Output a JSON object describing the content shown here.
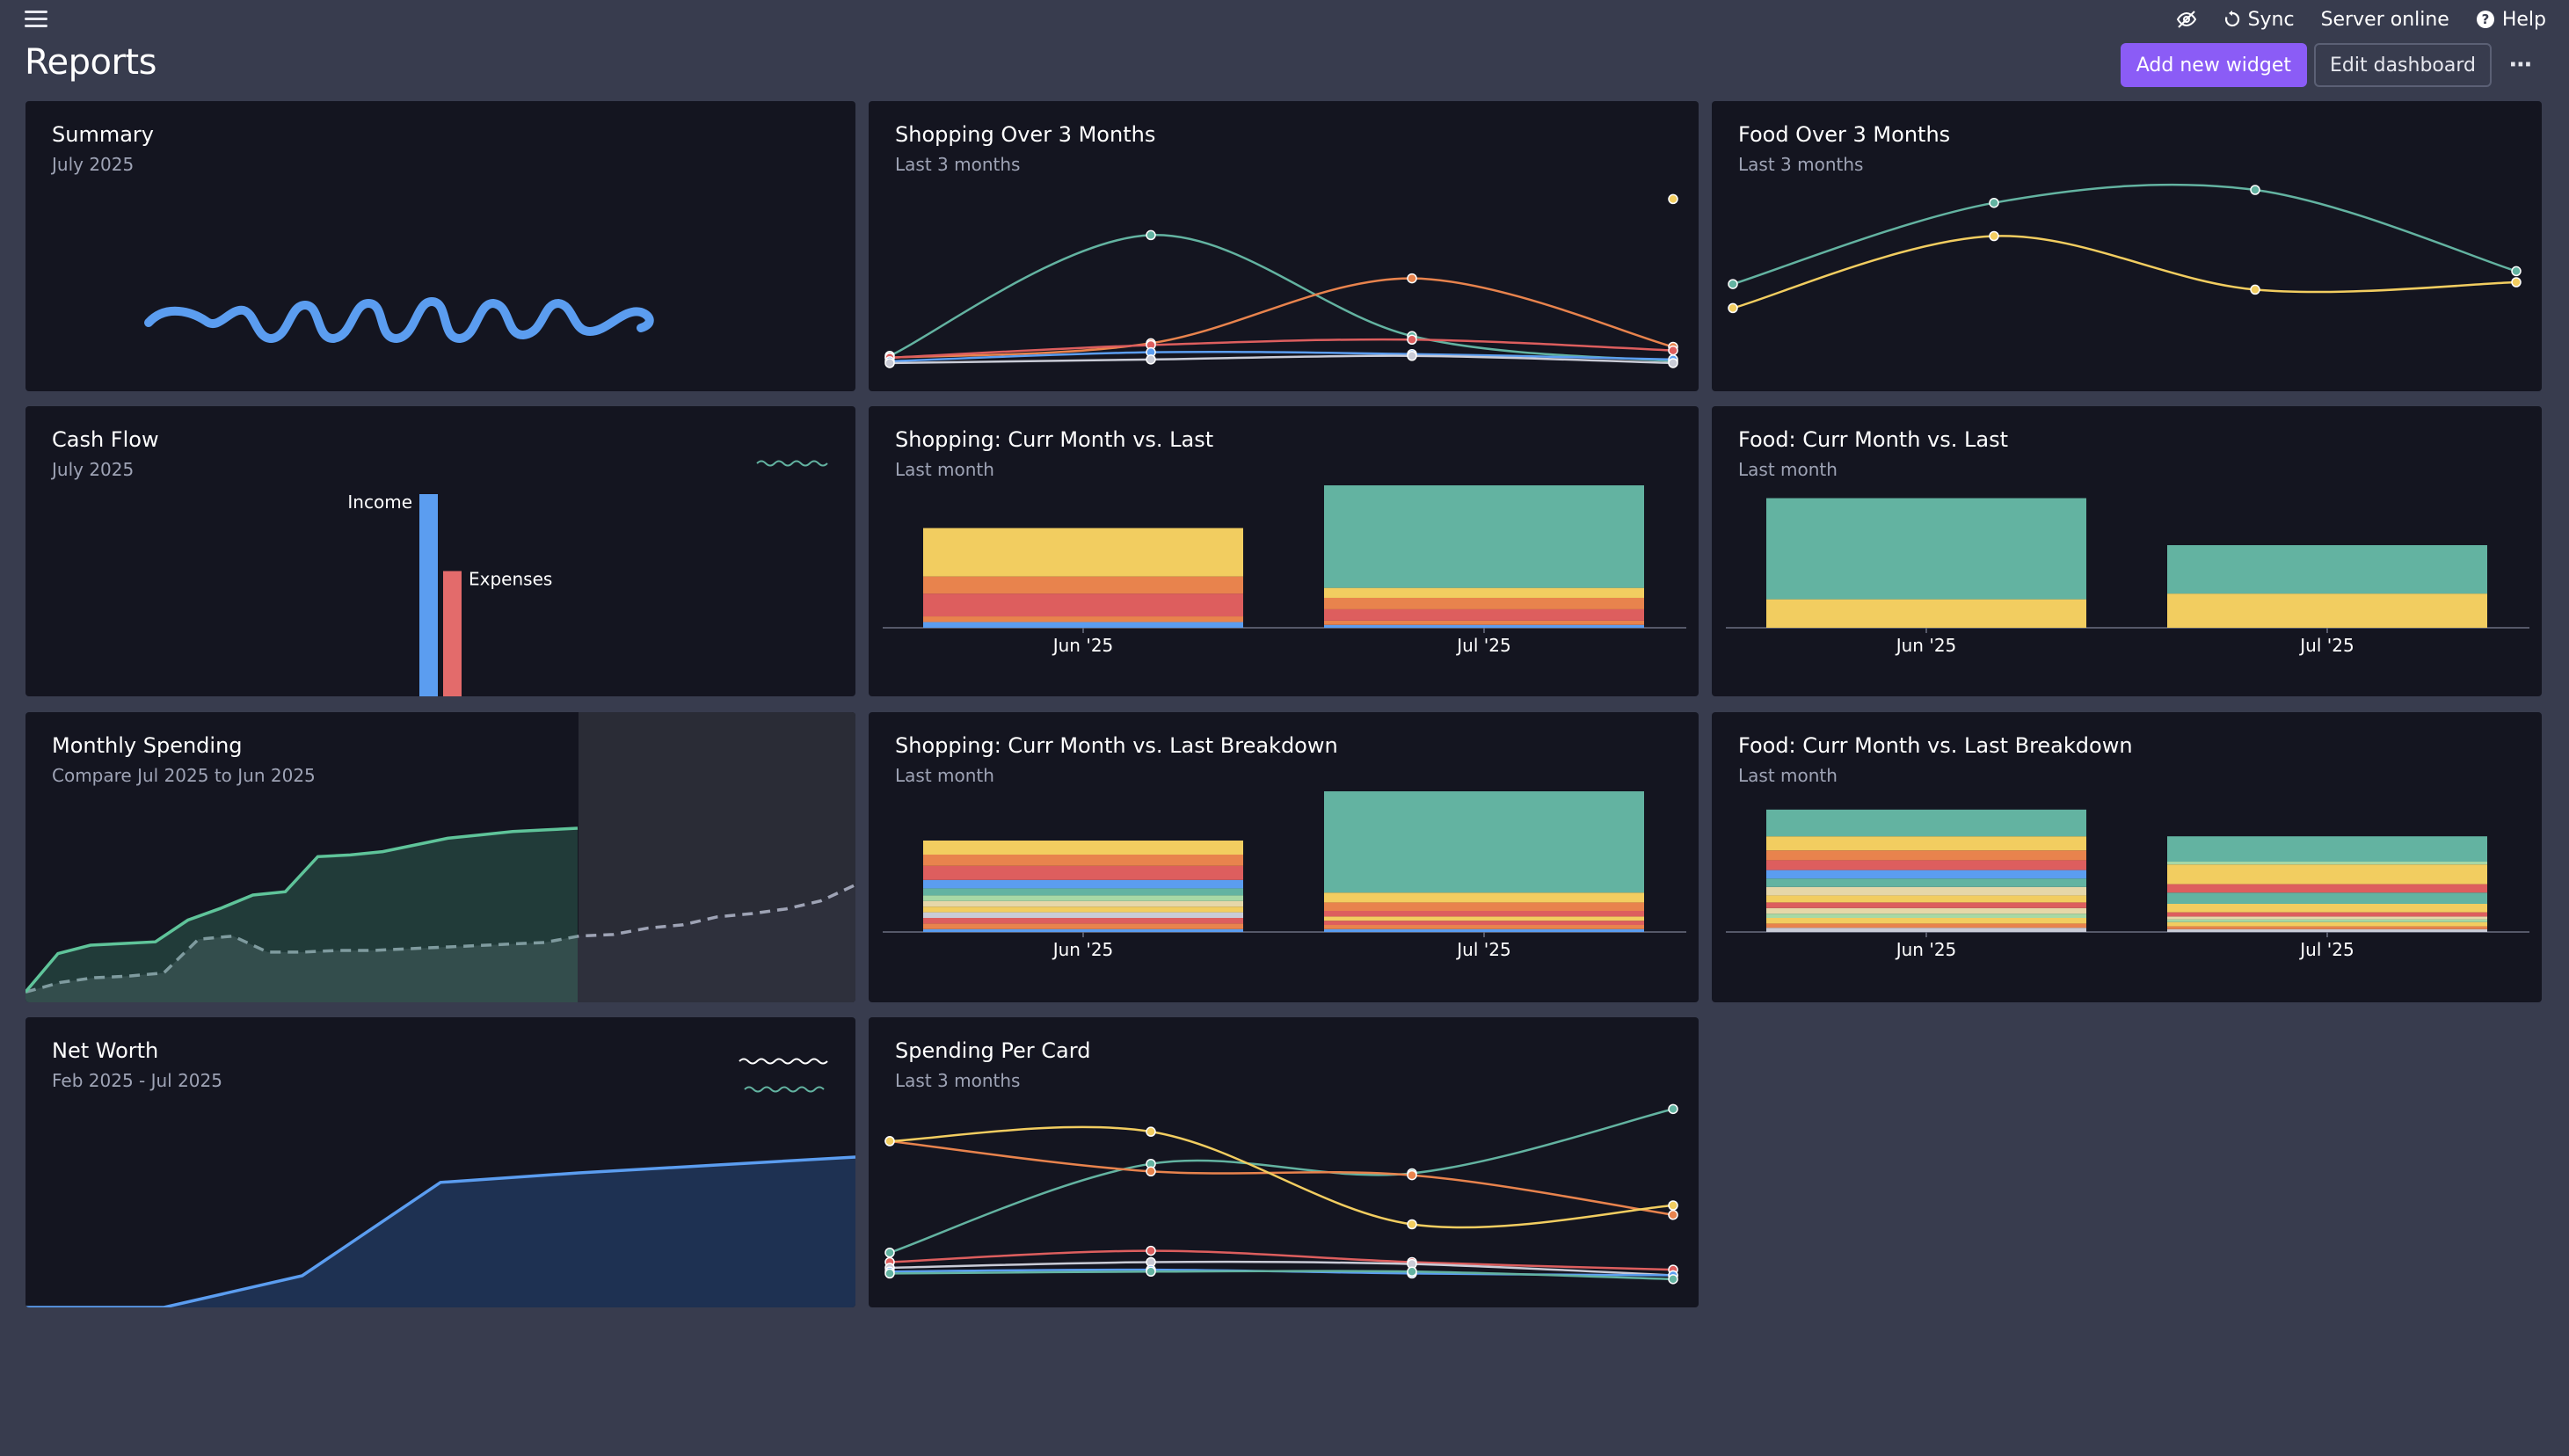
{
  "topbar": {
    "sync_label": "Sync",
    "server_label": "Server online",
    "help_label": "Help"
  },
  "page": {
    "title": "Reports",
    "add_widget_label": "Add new widget",
    "edit_dashboard_label": "Edit dashboard"
  },
  "colors": {
    "teal": "#63b3a1",
    "yellow": "#f2cd60",
    "orange": "#e8834d",
    "red": "#dd5e5e",
    "blue": "#5b9df0",
    "grey": "#c9cbd6",
    "purple": "#a78bfa",
    "accent": "#8b5cf6"
  },
  "cards": {
    "summary": {
      "title": "Summary",
      "subtitle": "July 2025"
    },
    "shopping_3m": {
      "title": "Shopping Over 3 Months",
      "subtitle": "Last 3 months"
    },
    "food_3m": {
      "title": "Food Over 3 Months",
      "subtitle": "Last 3 months"
    },
    "cash_flow": {
      "title": "Cash Flow",
      "subtitle": "July 2025"
    },
    "shopping_cvl": {
      "title": "Shopping: Curr Month vs. Last",
      "subtitle": "Last month"
    },
    "food_cvl": {
      "title": "Food: Curr Month vs. Last",
      "subtitle": "Last month"
    },
    "monthly_spending": {
      "title": "Monthly Spending",
      "subtitle": "Compare Jul 2025 to Jun 2025"
    },
    "shopping_breakdown": {
      "title": "Shopping: Curr Month vs. Last Breakdown",
      "subtitle": "Last month"
    },
    "food_breakdown": {
      "title": "Food: Curr Month vs. Last Breakdown",
      "subtitle": "Last month"
    },
    "net_worth": {
      "title": "Net Worth",
      "subtitle": "Feb 2025 - Jul 2025"
    },
    "spending_per_card": {
      "title": "Spending Per Card",
      "subtitle": "Last 3 months"
    }
  },
  "chart_data": [
    {
      "id": "shopping_3m",
      "type": "line",
      "ylim": [
        0,
        100
      ],
      "series": [
        {
          "color": "#63b3a1",
          "values": [
            5,
            72,
            16,
            2
          ]
        },
        {
          "color": "#e8834d",
          "values": [
            4,
            12,
            48,
            10
          ]
        },
        {
          "color": "#dd5e5e",
          "values": [
            4,
            11,
            14,
            8
          ]
        },
        {
          "color": "#5b9df0",
          "values": [
            2,
            7,
            6,
            3
          ]
        },
        {
          "color": "#c9cbd6",
          "values": [
            1,
            3,
            5,
            1
          ]
        },
        {
          "color": "#f2cd60",
          "values": [
            null,
            null,
            null,
            92
          ]
        }
      ]
    },
    {
      "id": "food_3m",
      "type": "line",
      "ylim": [
        0,
        100
      ],
      "series": [
        {
          "color": "#63b3a1",
          "values": [
            39,
            83,
            90,
            46
          ]
        },
        {
          "color": "#f2cd60",
          "values": [
            26,
            65,
            36,
            40
          ]
        }
      ]
    },
    {
      "id": "cash_flow",
      "type": "bar",
      "categories": [
        "Income",
        "Expenses"
      ],
      "values": [
        92,
        57
      ],
      "colors": [
        "#5b9df0",
        "#e36b6b"
      ],
      "ylim": [
        0,
        100
      ]
    },
    {
      "id": "shopping_cvl",
      "type": "bar",
      "stacked": true,
      "categories": [
        "Jun '25",
        "Jul '25"
      ],
      "ylim": [
        0,
        100
      ],
      "series": [
        {
          "color": "#5b9df0",
          "values": [
            4,
            2
          ]
        },
        {
          "color": "#e8834d",
          "values": [
            4,
            3
          ]
        },
        {
          "color": "#dd5e5e",
          "values": [
            16,
            8
          ]
        },
        {
          "color": "#e8834d",
          "values": [
            12,
            8
          ]
        },
        {
          "color": "#f2cd60",
          "values": [
            34,
            7
          ]
        },
        {
          "color": "#63b3a1",
          "values": [
            0,
            72
          ]
        }
      ]
    },
    {
      "id": "food_cvl",
      "type": "bar",
      "stacked": true,
      "categories": [
        "Jun '25",
        "Jul '25"
      ],
      "ylim": [
        0,
        100
      ],
      "series": [
        {
          "color": "#f2cd60",
          "values": [
            20,
            24
          ]
        },
        {
          "color": "#63b3a1",
          "values": [
            71,
            34
          ]
        }
      ]
    },
    {
      "id": "monthly_spending",
      "type": "area",
      "series": [
        {
          "color": "#5fc49a",
          "values": [
            2,
            25,
            30,
            31,
            32,
            45,
            52,
            60,
            62,
            83,
            84,
            86,
            90,
            94,
            96,
            98,
            99,
            100
          ]
        },
        {
          "color": "#9ea3b5",
          "values": [
            2,
            8,
            11,
            12,
            14,
            35,
            37,
            27,
            27,
            28,
            28,
            29,
            30,
            31,
            32,
            33,
            37,
            38,
            42,
            44,
            49,
            51,
            54,
            59,
            69
          ]
        }
      ]
    },
    {
      "id": "shopping_breakdown",
      "type": "bar",
      "stacked": true,
      "categories": [
        "Jun '25",
        "Jul '25"
      ],
      "ylim": [
        0,
        100
      ],
      "series": [
        {
          "color": "#5b9df0",
          "values": [
            2,
            2
          ]
        },
        {
          "color": "#e8834d",
          "values": [
            4,
            3
          ]
        },
        {
          "color": "#dd5e5e",
          "values": [
            4,
            3
          ]
        },
        {
          "color": "#c9cbd6",
          "values": [
            4,
            0
          ]
        },
        {
          "color": "#f2cd60",
          "values": [
            4,
            3
          ]
        },
        {
          "color": "#e6d7a8",
          "values": [
            4,
            0
          ]
        },
        {
          "color": "#a7d8a5",
          "values": [
            4,
            0
          ]
        },
        {
          "color": "#63b3a1",
          "values": [
            5,
            0
          ]
        },
        {
          "color": "#5b9df0",
          "values": [
            6,
            0
          ]
        },
        {
          "color": "#dd5e5e",
          "values": [
            10,
            4
          ]
        },
        {
          "color": "#e8834d",
          "values": [
            8,
            6
          ]
        },
        {
          "color": "#f2cd60",
          "values": [
            10,
            7
          ]
        },
        {
          "color": "#63b3a1",
          "values": [
            0,
            72
          ]
        }
      ]
    },
    {
      "id": "food_breakdown",
      "type": "bar",
      "stacked": true,
      "categories": [
        "Jun '25",
        "Jul '25"
      ],
      "ylim": [
        0,
        100
      ],
      "series": [
        {
          "color": "#c9cbd6",
          "values": [
            3,
            2
          ]
        },
        {
          "color": "#e8834d",
          "values": [
            3,
            2
          ]
        },
        {
          "color": "#f2cd60",
          "values": [
            4,
            3
          ]
        },
        {
          "color": "#a7d8a5",
          "values": [
            3,
            2
          ]
        },
        {
          "color": "#e6d7a8",
          "values": [
            4,
            2
          ]
        },
        {
          "color": "#dd5e5e",
          "values": [
            4,
            3
          ]
        },
        {
          "color": "#f2cd60",
          "values": [
            5,
            6
          ]
        },
        {
          "color": "#e6d7a8",
          "values": [
            6,
            0
          ]
        },
        {
          "color": "#63b3a1",
          "values": [
            6,
            8
          ]
        },
        {
          "color": "#5b9df0",
          "values": [
            6,
            0
          ]
        },
        {
          "color": "#dd5e5e",
          "values": [
            7,
            6
          ]
        },
        {
          "color": "#e8834d",
          "values": [
            7,
            0
          ]
        },
        {
          "color": "#f2cd60",
          "values": [
            10,
            14
          ]
        },
        {
          "color": "#a7d8a5",
          "values": [
            0,
            2
          ]
        },
        {
          "color": "#63b3a1",
          "values": [
            19,
            18
          ]
        }
      ]
    },
    {
      "id": "net_worth",
      "type": "area",
      "series": [
        {
          "color": "#5b9df0",
          "values": [
            0,
            0,
            20,
            79,
            85,
            90,
            95
          ]
        }
      ]
    },
    {
      "id": "spending_per_card",
      "type": "line",
      "ylim": [
        0,
        100
      ],
      "series": [
        {
          "color": "#63b3a1",
          "values": [
            15,
            62,
            57,
            91
          ]
        },
        {
          "color": "#e8834d",
          "values": [
            74,
            58,
            56,
            35
          ]
        },
        {
          "color": "#f2cd60",
          "values": [
            74,
            79,
            30,
            40
          ]
        },
        {
          "color": "#dd5e5e",
          "values": [
            10,
            16,
            10,
            6
          ]
        },
        {
          "color": "#c9cbd6",
          "values": [
            7,
            10,
            9,
            3
          ]
        },
        {
          "color": "#5b9df0",
          "values": [
            5,
            6,
            4,
            3
          ]
        },
        {
          "color": "#63b3a1",
          "values": [
            4,
            5,
            5,
            1
          ]
        }
      ]
    }
  ]
}
